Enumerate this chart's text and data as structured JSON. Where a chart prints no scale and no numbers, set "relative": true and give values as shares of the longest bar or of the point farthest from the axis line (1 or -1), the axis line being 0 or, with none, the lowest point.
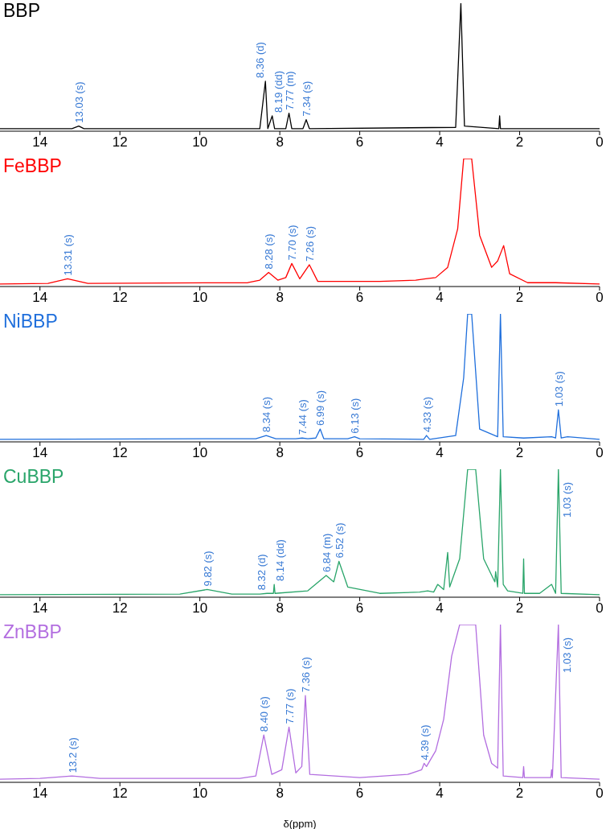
{
  "chart_data": [
    {
      "type": "line",
      "title": "BBP",
      "relative": true,
      "xlim": [
        15,
        0
      ],
      "xticks": [
        14,
        12,
        10,
        8,
        6,
        4,
        2,
        0
      ],
      "tick_labels": "x",
      "grid": false,
      "series": [
        {
          "color": "#000000",
          "x": [
            15,
            13.2,
            13.03,
            12.9,
            8.5,
            8.36,
            8.3,
            8.19,
            8.13,
            7.85,
            7.77,
            7.7,
            7.42,
            7.34,
            7.26,
            3.6,
            3.47,
            3.38,
            2.52,
            2.5,
            2.48,
            0
          ],
          "values": [
            0.02,
            0.02,
            0.04,
            0.02,
            0.02,
            0.39,
            0.02,
            0.12,
            0.02,
            0.02,
            0.14,
            0.02,
            0.02,
            0.09,
            0.02,
            0.03,
            1,
            0.04,
            0.02,
            0.12,
            0.02,
            0.02
          ]
        }
      ],
      "annotations": [
        {
          "text": "13.03 (s)",
          "x": 13.03,
          "y": 0.04
        },
        {
          "text": "8.36 (d)",
          "x": 8.36,
          "y": 0.39
        },
        {
          "text": "8.19 (dd)",
          "x": 8.19,
          "y": 0.12
        },
        {
          "text": "7.77 (m)",
          "x": 7.77,
          "y": 0.14
        },
        {
          "text": "7.34 (s)",
          "x": 7.34,
          "y": 0.09
        }
      ]
    },
    {
      "type": "line",
      "title": "FeBBP",
      "relative": true,
      "xlim": [
        15,
        0
      ],
      "xticks": [
        14,
        12,
        10,
        8,
        6,
        4,
        2,
        0
      ],
      "tick_labels": "x",
      "grid": false,
      "series": [
        {
          "color": "#ff0000",
          "x": [
            15,
            13.8,
            13.31,
            12.8,
            8.8,
            8.5,
            8.28,
            8.05,
            7.85,
            7.7,
            7.5,
            7.26,
            7.05,
            5.5,
            4.6,
            4.35,
            4.1,
            3.8,
            3.55,
            3.4,
            3.2,
            3.0,
            2.7,
            2.55,
            2.4,
            2.25,
            1.8,
            1.1,
            0
          ],
          "values": [
            0.02,
            0.025,
            0.06,
            0.025,
            0.03,
            0.05,
            0.11,
            0.05,
            0.07,
            0.18,
            0.06,
            0.17,
            0.04,
            0.04,
            0.05,
            0.06,
            0.07,
            0.15,
            0.45,
            1,
            1,
            0.4,
            0.15,
            0.2,
            0.32,
            0.1,
            0.03,
            0.03,
            0.02
          ]
        }
      ],
      "annotations": [
        {
          "text": "13.31 (s)",
          "x": 13.31,
          "y": 0.06
        },
        {
          "text": "8.28 (s)",
          "x": 8.28,
          "y": 0.11
        },
        {
          "text": "7.70 (s)",
          "x": 7.7,
          "y": 0.18
        },
        {
          "text": "7.26 (s)",
          "x": 7.26,
          "y": 0.17
        }
      ]
    },
    {
      "type": "line",
      "title": "NiBBP",
      "relative": true,
      "xlim": [
        15,
        0
      ],
      "xticks": [
        14,
        12,
        10,
        8,
        6,
        4,
        2,
        0
      ],
      "tick_labels": "x",
      "grid": false,
      "series": [
        {
          "color": "#1f6fdc",
          "x": [
            15,
            8.6,
            8.34,
            8.1,
            7.6,
            7.44,
            7.3,
            7.1,
            6.99,
            6.9,
            6.3,
            6.13,
            6.0,
            4.4,
            4.33,
            4.25,
            3.6,
            3.4,
            3.3,
            3.2,
            3.0,
            2.55,
            2.48,
            2.41,
            1.9,
            1.2,
            1.1,
            1.03,
            0.96,
            0.8,
            0
          ],
          "values": [
            0.02,
            0.025,
            0.05,
            0.025,
            0.025,
            0.03,
            0.025,
            0.03,
            0.1,
            0.025,
            0.025,
            0.04,
            0.025,
            0.02,
            0.05,
            0.02,
            0.05,
            0.5,
            1,
            1,
            0.1,
            0.04,
            1,
            0.04,
            0.03,
            0.04,
            0.03,
            0.25,
            0.03,
            0.04,
            0.02
          ]
        }
      ],
      "annotations": [
        {
          "text": "8.34 (s)",
          "x": 8.34,
          "y": 0.05
        },
        {
          "text": "7.44 (s)",
          "x": 7.44,
          "y": 0.03
        },
        {
          "text": "6.99 (s)",
          "x": 6.99,
          "y": 0.1
        },
        {
          "text": "6.13 (s)",
          "x": 6.13,
          "y": 0.04
        },
        {
          "text": "4.33 (s)",
          "x": 4.33,
          "y": 0.05
        },
        {
          "text": "1.03 (s)",
          "x": 1.03,
          "y": 0.25
        }
      ]
    },
    {
      "type": "line",
      "title": "CuBBP",
      "relative": true,
      "xlim": [
        15,
        0
      ],
      "xticks": [
        14,
        12,
        10,
        8,
        6,
        4,
        2,
        0
      ],
      "tick_labels": "x",
      "grid": false,
      "series": [
        {
          "color": "#2aa56a",
          "x": [
            15,
            10.5,
            9.82,
            9.2,
            8.5,
            8.32,
            8.16,
            8.14,
            8.12,
            7.3,
            6.84,
            6.65,
            6.52,
            6.3,
            5.5,
            4.5,
            4.3,
            4.15,
            4.05,
            3.9,
            3.8,
            3.75,
            3.5,
            3.3,
            3.2,
            3.1,
            2.9,
            2.62,
            2.6,
            2.55,
            2.48,
            2.41,
            2.3,
            1.92,
            1.9,
            1.88,
            1.5,
            1.2,
            1.1,
            1.03,
            0.96,
            0
          ],
          "values": [
            0.02,
            0.025,
            0.06,
            0.025,
            0.025,
            0.03,
            0.03,
            0.1,
            0.03,
            0.05,
            0.17,
            0.12,
            0.28,
            0.08,
            0.03,
            0.04,
            0.05,
            0.04,
            0.1,
            0.06,
            0.35,
            0.08,
            0.3,
            1,
            1,
            1,
            0.3,
            0.12,
            0.2,
            0.08,
            1,
            0.1,
            0.05,
            0.03,
            0.3,
            0.03,
            0.03,
            0.1,
            0.03,
            1,
            0.03,
            0.02
          ]
        }
      ],
      "annotations": [
        {
          "text": "9.82 (s)",
          "x": 9.82,
          "y": 0.06
        },
        {
          "text": "8.32 (d)",
          "x": 8.32,
          "y": 0.03
        },
        {
          "text": "8.14 (dd)",
          "x": 8.14,
          "y": 0.1
        },
        {
          "text": "6.84 (m)",
          "x": 6.84,
          "y": 0.17
        },
        {
          "text": "6.52 (s)",
          "x": 6.52,
          "y": 0.28
        },
        {
          "text": "1.03 (s)",
          "x": 1.03,
          "y": 1
        }
      ]
    },
    {
      "type": "line",
      "title": "ZnBBP",
      "xlabel": "δ(ppm)",
      "relative": true,
      "xlim": [
        15,
        0
      ],
      "xticks": [
        14,
        12,
        10,
        8,
        6,
        4,
        2,
        0
      ],
      "tick_labels": "x",
      "grid": false,
      "series": [
        {
          "color": "#b36ee0",
          "x": [
            15,
            14,
            13.2,
            12.5,
            9,
            8.6,
            8.4,
            8.2,
            7.95,
            7.77,
            7.6,
            7.45,
            7.36,
            7.25,
            6,
            4.8,
            4.45,
            4.39,
            4.33,
            4.1,
            3.9,
            3.7,
            3.5,
            3.3,
            3.1,
            2.9,
            2.7,
            2.55,
            2.48,
            2.41,
            1.92,
            1.9,
            1.88,
            1.22,
            1.2,
            1.18,
            1.03,
            0.96,
            0
          ],
          "values": [
            0.02,
            0.025,
            0.04,
            0.025,
            0.025,
            0.04,
            0.3,
            0.05,
            0.08,
            0.35,
            0.06,
            0.1,
            0.55,
            0.05,
            0.03,
            0.05,
            0.08,
            0.12,
            0.1,
            0.2,
            0.4,
            0.8,
            1,
            1,
            1,
            0.3,
            0.12,
            0.09,
            1,
            0.04,
            0.03,
            0.1,
            0.03,
            0.03,
            0.08,
            0.03,
            1,
            0.03,
            0.02
          ]
        }
      ],
      "annotations": [
        {
          "text": "13.2 (s)",
          "x": 13.2,
          "y": 0.04
        },
        {
          "text": "8.40 (s)",
          "x": 8.4,
          "y": 0.3
        },
        {
          "text": "7.77 (s)",
          "x": 7.77,
          "y": 0.35
        },
        {
          "text": "7.36 (s)",
          "x": 7.36,
          "y": 0.55
        },
        {
          "text": "4.39 (s)",
          "x": 4.39,
          "y": 0.12
        },
        {
          "text": "1.03 (s)",
          "x": 1.03,
          "y": 1
        }
      ]
    }
  ]
}
